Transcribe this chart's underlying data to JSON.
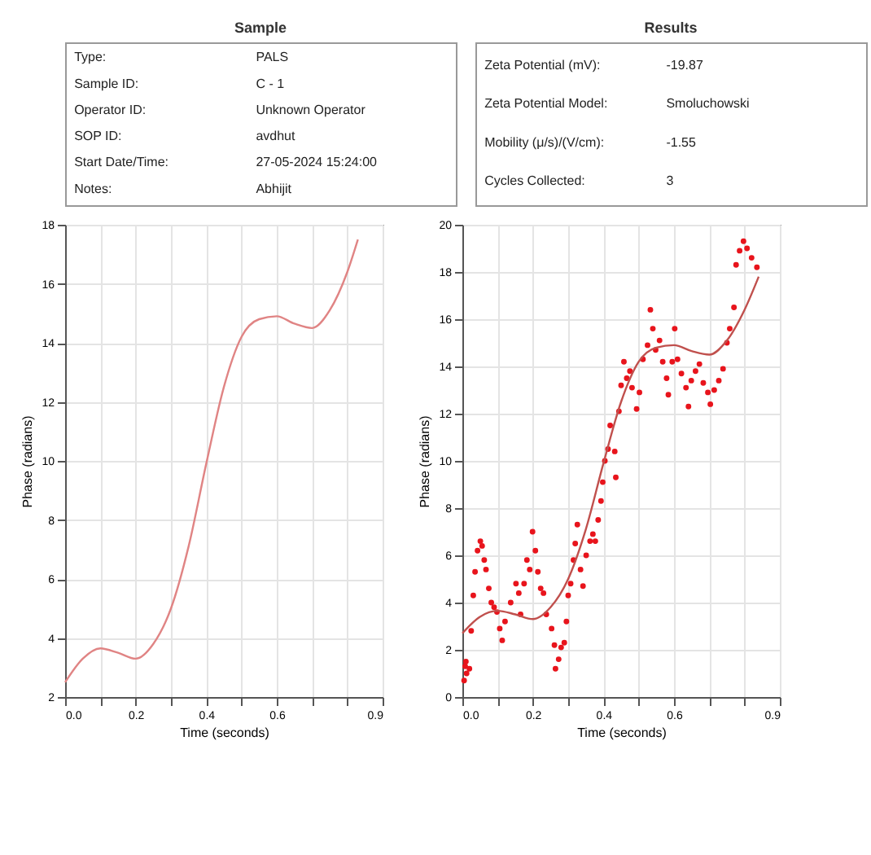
{
  "chart_data": [
    {
      "type": "other",
      "title": "Sample",
      "annotations": [
        "Type:",
        "PALS",
        "Sample ID:",
        "C - 1",
        "Operator ID:",
        "Unknown Operator",
        "SOP ID:",
        "avdhut",
        "Start Date/Time:",
        "27-05-2024 15:24:00",
        "Notes:",
        "Abhijit"
      ]
    },
    {
      "type": "other",
      "title": "Results",
      "annotations": [
        "Zeta Potential (mV):",
        "-19.87",
        "Zeta Potential Model:",
        "Smoluchowski",
        "Mobility (μ/s)/(V/cm):",
        "-1.55",
        "Cycles Collected:",
        "3"
      ]
    },
    {
      "type": "line",
      "xlabel": "Time (seconds)",
      "ylabel": "Phase (radians)",
      "grid": true,
      "xlim": [
        0,
        0.9
      ],
      "ylim": [
        2,
        18
      ],
      "xticks": [
        {
          "value": 0,
          "label": "0.0"
        },
        {
          "value": 0.1,
          "label": null
        },
        0.2,
        {
          "value": 0.3,
          "label": null
        },
        0.4,
        {
          "value": 0.5,
          "label": null
        },
        0.6,
        {
          "value": 0.7,
          "label": null
        },
        {
          "value": 0.8,
          "label": null
        },
        0.9
      ],
      "yticks": [
        2,
        4,
        6,
        8,
        10,
        12,
        14,
        16,
        18
      ],
      "series": [
        {
          "type": "line",
          "color": "#e08484",
          "x": [
            0,
            0.05,
            0.1,
            0.15,
            0.2,
            0.25,
            0.3,
            0.35,
            0.4,
            0.45,
            0.5,
            0.55,
            0.6,
            0.65,
            0.7,
            0.75,
            0.8,
            0.83
          ],
          "values": [
            2.5,
            3.3,
            3.65,
            3.5,
            3.3,
            3.8,
            5.0,
            7.1,
            9.9,
            12.5,
            14.2,
            14.8,
            14.9,
            14.65,
            14.5,
            15.1,
            16.4,
            17.5
          ]
        }
      ]
    },
    {
      "type": "scatter",
      "xlabel": "Time (seconds)",
      "ylabel": "Phase (radians)",
      "grid": true,
      "xlim": [
        0,
        0.9
      ],
      "ylim": [
        0,
        20
      ],
      "xticks": [
        {
          "value": 0,
          "label": "0.0"
        },
        {
          "value": 0.1,
          "label": null
        },
        0.2,
        {
          "value": 0.3,
          "label": null
        },
        0.4,
        {
          "value": 0.5,
          "label": null
        },
        0.6,
        {
          "value": 0.7,
          "label": null
        },
        {
          "value": 0.8,
          "label": null
        },
        0.9
      ],
      "yticks": [
        0,
        2,
        4,
        6,
        8,
        10,
        12,
        14,
        16,
        18,
        20
      ],
      "series": [
        {
          "type": "scatter",
          "color": "#e8141c",
          "x": [
            0.005,
            0.008,
            0.012,
            0.02,
            0.01,
            0.025,
            0.031,
            0.036,
            0.043,
            0.051,
            0.056,
            0.062,
            0.067,
            0.075,
            0.082,
            0.09,
            0.098,
            0.106,
            0.113,
            0.121,
            0.137,
            0.152,
            0.16,
            0.165,
            0.175,
            0.183,
            0.191,
            0.199,
            0.207,
            0.214,
            0.222,
            0.23,
            0.238,
            0.253,
            0.261,
            0.264,
            0.273,
            0.28,
            0.289,
            0.295,
            0.3,
            0.307,
            0.315,
            0.32,
            0.326,
            0.335,
            0.342,
            0.351,
            0.362,
            0.37,
            0.377,
            0.385,
            0.393,
            0.398,
            0.404,
            0.413,
            0.419,
            0.432,
            0.435,
            0.444,
            0.45,
            0.458,
            0.466,
            0.475,
            0.481,
            0.494,
            0.502,
            0.512,
            0.525,
            0.533,
            0.54,
            0.548,
            0.559,
            0.568,
            0.579,
            0.584,
            0.595,
            0.602,
            0.61,
            0.621,
            0.634,
            0.641,
            0.649,
            0.661,
            0.672,
            0.683,
            0.696,
            0.703,
            0.714,
            0.727,
            0.739,
            0.75,
            0.758,
            0.77,
            0.776,
            0.786,
            0.797,
            0.807,
            0.82,
            0.835
          ],
          "values": [
            0.7,
            1.3,
            1.0,
            1.2,
            1.5,
            2.8,
            4.3,
            5.3,
            6.2,
            6.6,
            6.4,
            5.8,
            5.4,
            4.6,
            4.0,
            3.8,
            3.6,
            2.9,
            2.4,
            3.2,
            4.0,
            4.8,
            4.4,
            3.5,
            4.8,
            5.8,
            5.4,
            7.0,
            6.2,
            5.3,
            4.6,
            4.4,
            3.5,
            2.9,
            2.2,
            1.2,
            1.6,
            2.1,
            2.3,
            3.2,
            4.3,
            4.8,
            5.8,
            6.5,
            7.3,
            5.4,
            4.7,
            6.0,
            6.6,
            6.9,
            6.6,
            7.5,
            8.3,
            9.1,
            10.0,
            10.5,
            11.5,
            10.4,
            9.3,
            12.1,
            13.2,
            14.2,
            13.5,
            13.8,
            13.1,
            12.2,
            12.9,
            14.3,
            14.9,
            16.4,
            15.6,
            14.7,
            15.1,
            14.2,
            13.5,
            12.8,
            14.2,
            15.6,
            14.3,
            13.7,
            13.1,
            12.3,
            13.4,
            13.8,
            14.1,
            13.3,
            12.9,
            12.4,
            13.0,
            13.4,
            13.9,
            15.0,
            15.6,
            16.5,
            18.3,
            18.9,
            19.3,
            19.0,
            18.6,
            18.2
          ]
        },
        {
          "type": "line",
          "color": "#c0504d",
          "x": [
            0,
            0.05,
            0.1,
            0.15,
            0.2,
            0.25,
            0.3,
            0.35,
            0.4,
            0.45,
            0.5,
            0.55,
            0.6,
            0.65,
            0.7,
            0.75,
            0.8,
            0.84
          ],
          "values": [
            2.7,
            3.4,
            3.65,
            3.5,
            3.3,
            3.8,
            5.0,
            7.1,
            9.9,
            12.5,
            14.2,
            14.8,
            14.9,
            14.65,
            14.5,
            15.1,
            16.4,
            17.8
          ]
        }
      ]
    }
  ]
}
